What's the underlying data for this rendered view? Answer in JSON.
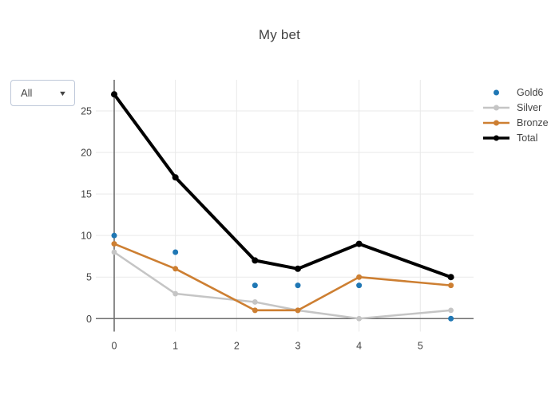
{
  "dropdown": {
    "value": "All"
  },
  "chart_data": {
    "type": "line",
    "title": "My bet",
    "x": [
      0,
      1,
      2.3,
      3,
      4,
      5.5
    ],
    "series": [
      {
        "name": "Gold6",
        "mode": "markers",
        "color": "#1f77b4",
        "line_width": 0,
        "marker_r": 3.5,
        "values": [
          10,
          8,
          4,
          4,
          4,
          0
        ]
      },
      {
        "name": "Silver",
        "mode": "lines+markers",
        "color": "#c5c5c5",
        "line_width": 2.5,
        "marker_r": 3.4,
        "values": [
          8,
          3,
          2,
          1,
          0,
          1
        ]
      },
      {
        "name": "Bronze",
        "mode": "lines+markers",
        "color": "#cd7f32",
        "line_width": 2.6,
        "marker_r": 3.5,
        "values": [
          9,
          6,
          1,
          1,
          5,
          4
        ]
      },
      {
        "name": "Total",
        "mode": "lines+markers",
        "color": "#000000",
        "line_width": 4,
        "marker_r": 4,
        "values": [
          27,
          17,
          7,
          6,
          9,
          5
        ]
      }
    ],
    "xticks": [
      0,
      1,
      2,
      3,
      4,
      5
    ],
    "yticks": [
      0,
      5,
      10,
      15,
      20,
      25
    ],
    "xlim": [
      -0.3,
      5.87
    ],
    "ylim": [
      -1.56,
      28.75
    ],
    "grid": true,
    "legend_position": "right",
    "grid_color": "#e9e9e9",
    "zeroline_color": "#6e6e6e",
    "tick_color": "#444444"
  }
}
